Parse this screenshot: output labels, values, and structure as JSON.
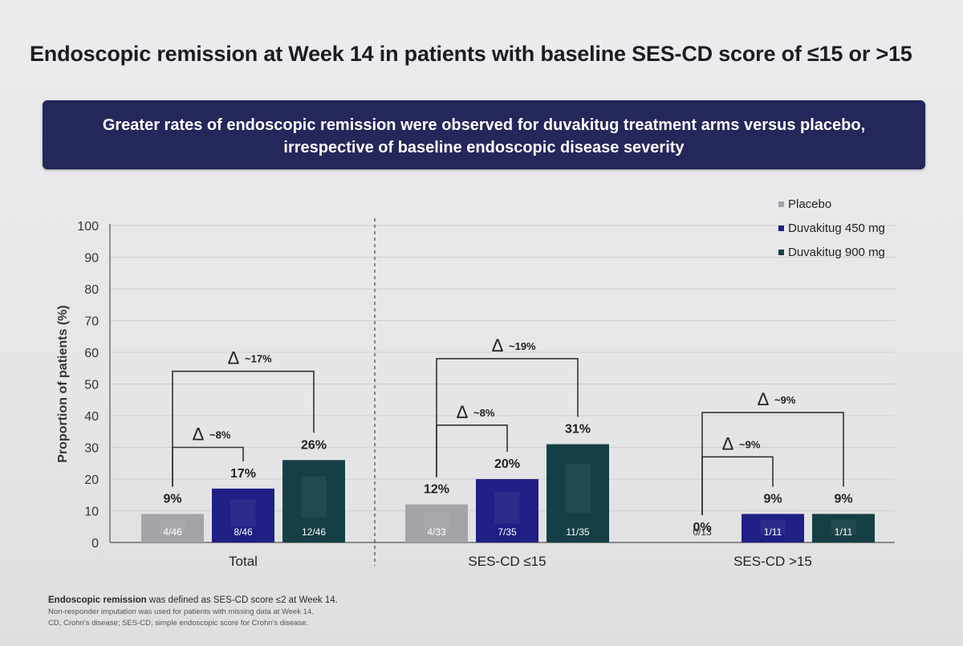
{
  "title": "Endoscopic remission at Week 14 in patients with baseline SES-CD score of ≤15 or >15",
  "banner": {
    "line1": "Greater rates of endoscopic remission were observed for duvakitug treatment arms versus placebo,",
    "line2": "irrespective of baseline endoscopic disease severity"
  },
  "chart_data": {
    "type": "bar",
    "ylabel": "Proportion of patients (%)",
    "ylim": [
      0,
      100
    ],
    "yticks": [
      0,
      10,
      20,
      30,
      40,
      50,
      60,
      70,
      80,
      90,
      100
    ],
    "grid": true,
    "legend_position": "top-right",
    "categories": [
      "Total",
      "SES-CD ≤15",
      "SES-CD >15"
    ],
    "series": [
      {
        "name": "Placebo",
        "color": "#a3a3a8",
        "values": [
          9,
          12,
          0
        ],
        "labels": [
          "9%",
          "12%",
          "0%"
        ],
        "counts": [
          "4/46",
          "4/33",
          "0/13"
        ]
      },
      {
        "name": "Duvakitug 450 mg",
        "color": "#1f1f86",
        "values": [
          17,
          20,
          9
        ],
        "labels": [
          "17%",
          "20%",
          "9%"
        ],
        "counts": [
          "8/46",
          "7/35",
          "1/11"
        ]
      },
      {
        "name": "Duvakitug 900 mg",
        "color": "#143f45",
        "values": [
          26,
          31,
          9
        ],
        "labels": [
          "26%",
          "31%",
          "9%"
        ],
        "counts": [
          "12/46",
          "11/35",
          "1/11"
        ]
      }
    ],
    "annotations": [
      {
        "group": 0,
        "from": 0,
        "to": 1,
        "level": 30,
        "text": "Δ",
        "value": "~8%"
      },
      {
        "group": 0,
        "from": 0,
        "to": 2,
        "level": 54,
        "text": "Δ",
        "value": "~17%"
      },
      {
        "group": 1,
        "from": 0,
        "to": 1,
        "level": 37,
        "text": "Δ",
        "value": "~8%"
      },
      {
        "group": 1,
        "from": 0,
        "to": 2,
        "level": 58,
        "text": "Δ",
        "value": "~19%"
      },
      {
        "group": 2,
        "from": 0,
        "to": 1,
        "level": 27,
        "text": "Δ",
        "value": "~9%"
      },
      {
        "group": 2,
        "from": 0,
        "to": 2,
        "level": 41,
        "text": "Δ",
        "value": "~9%"
      }
    ]
  },
  "footnotes": {
    "line1_bold": "Endoscopic remission",
    "line1_rest": " was defined as SES-CD score ≤2 at Week 14.",
    "line2": "Non-responder imputation was used for patients with missing data at Week 14.",
    "line3": "CD, Crohn's disease; SES-CD, simple endoscopic score for Crohn's disease."
  }
}
